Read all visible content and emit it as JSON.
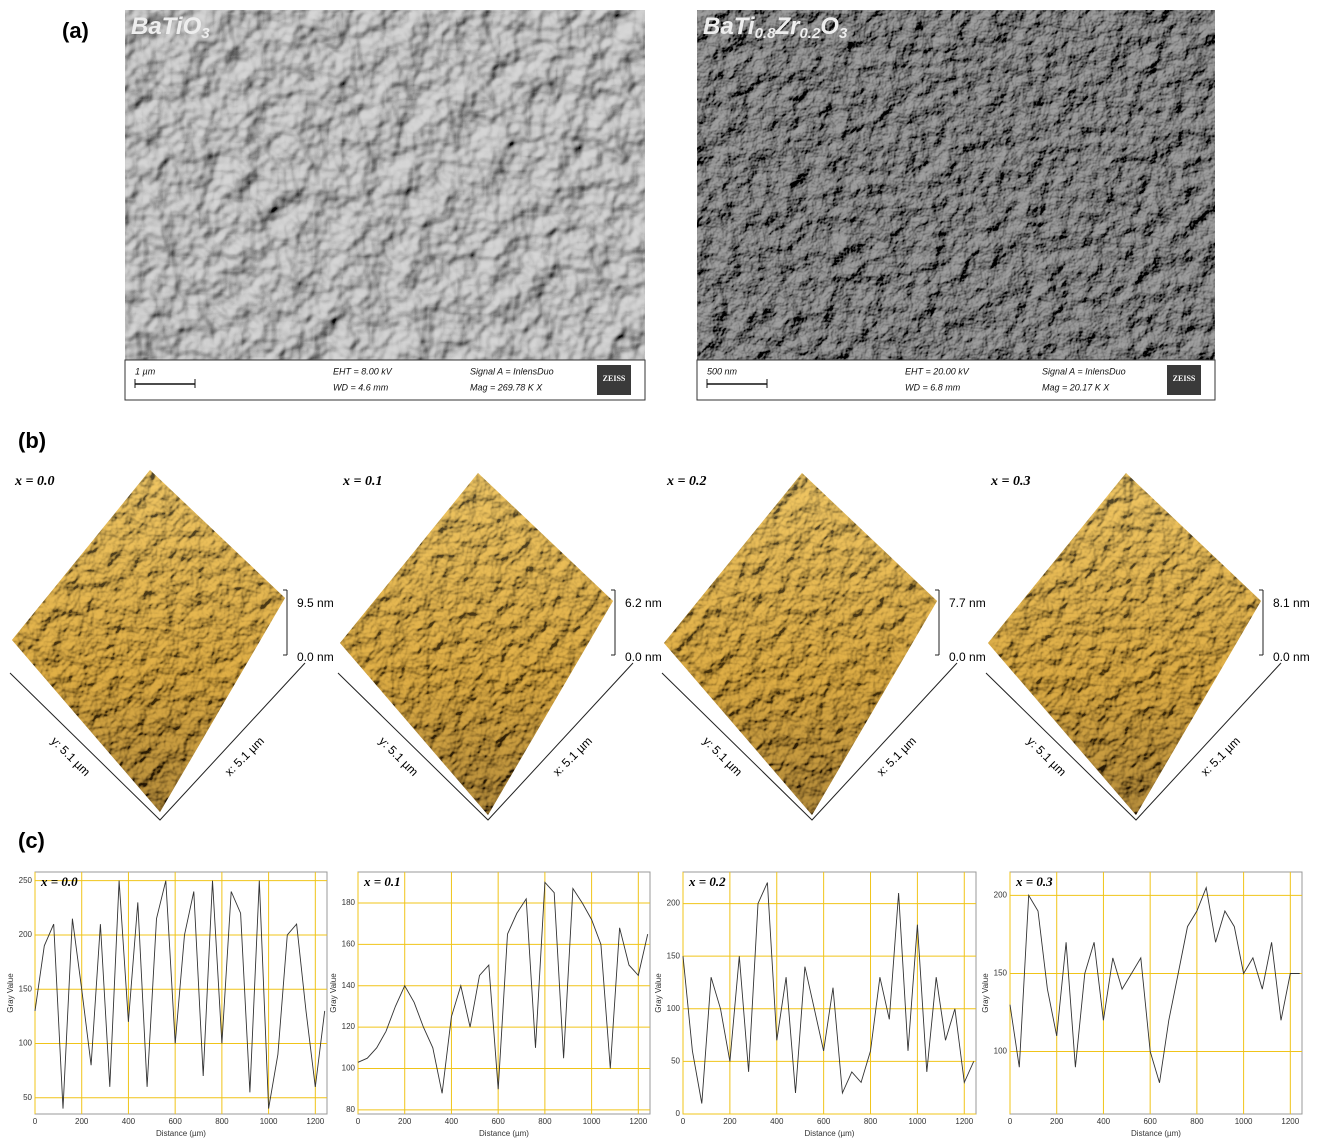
{
  "panel_a": {
    "label": "(a)",
    "images": [
      {
        "title": [
          {
            "text": "BaTiO"
          },
          {
            "text": "3",
            "sub": true
          }
        ],
        "scale_bar": "1 µm",
        "eht": "EHT = 8.00 kV",
        "wd": "WD = 4.6 mm",
        "signal": "Signal A = InlensDuo",
        "mag": "Mag = 269.78 K X",
        "logo": "ZEISS"
      },
      {
        "title": [
          {
            "text": "BaTi"
          },
          {
            "text": "0.8",
            "sub": true
          },
          {
            "text": "Zr"
          },
          {
            "text": "0.2",
            "sub": true
          },
          {
            "text": "O"
          },
          {
            "text": "3",
            "sub": true
          }
        ],
        "scale_bar": "500 nm",
        "eht": "EHT = 20.00 kV",
        "wd": "WD = 6.8 mm",
        "signal": "Signal A = InlensDuo",
        "mag": "Mag = 20.17 K X",
        "logo": "ZEISS"
      }
    ]
  },
  "panel_b": {
    "label": "(b)",
    "surfaces": [
      {
        "label": "x = 0.0",
        "z_max": "9.5 nm",
        "z_min": "0.0 nm",
        "y_axis": "y: 5.1 µm",
        "x_axis": "x: 5.1 µm"
      },
      {
        "label": "x = 0.1",
        "z_max": "6.2 nm",
        "z_min": "0.0 nm",
        "y_axis": "y: 5.1 µm",
        "x_axis": "x: 5.1 µm"
      },
      {
        "label": "x = 0.2",
        "z_max": "7.7 nm",
        "z_min": "0.0 nm",
        "y_axis": "y: 5.1 µm",
        "x_axis": "x: 5.1 µm"
      },
      {
        "label": "x = 0.3",
        "z_max": "8.1 nm",
        "z_min": "0.0 nm",
        "y_axis": "y: 5.1 µm",
        "x_axis": "x: 5.1 µm"
      }
    ]
  },
  "panel_c": {
    "label": "(c)"
  },
  "chart_data": [
    {
      "type": "line",
      "annotation": "x = 0.0",
      "xlabel": "Distance (µm)",
      "ylabel": "Gray Value",
      "color": "#333333",
      "grid": true,
      "x": [
        0,
        40,
        80,
        120,
        160,
        200,
        240,
        280,
        320,
        360,
        400,
        440,
        480,
        520,
        560,
        600,
        640,
        680,
        720,
        760,
        800,
        840,
        880,
        920,
        960,
        1000,
        1040,
        1080,
        1120,
        1160,
        1200,
        1240
      ],
      "values": [
        130,
        190,
        210,
        40,
        215,
        150,
        80,
        210,
        60,
        250,
        120,
        230,
        60,
        215,
        250,
        100,
        200,
        240,
        70,
        250,
        100,
        240,
        220,
        55,
        250,
        40,
        90,
        200,
        210,
        130,
        60,
        130
      ],
      "xlim": [
        0,
        1250
      ],
      "xticks": [
        0,
        200,
        400,
        600,
        800,
        1000,
        1200
      ],
      "ylim": [
        35,
        258
      ],
      "yticks": [
        50,
        100,
        150,
        200,
        250
      ]
    },
    {
      "type": "line",
      "annotation": "x = 0.1",
      "xlabel": "Distance (µm)",
      "ylabel": "Gray Value",
      "color": "#333333",
      "grid": true,
      "x": [
        0,
        40,
        80,
        120,
        160,
        200,
        240,
        280,
        320,
        360,
        400,
        440,
        480,
        520,
        560,
        600,
        640,
        680,
        720,
        760,
        800,
        840,
        880,
        920,
        960,
        1000,
        1040,
        1080,
        1120,
        1160,
        1200,
        1240
      ],
      "values": [
        103,
        105,
        110,
        118,
        130,
        140,
        132,
        120,
        110,
        88,
        125,
        140,
        120,
        145,
        150,
        90,
        165,
        175,
        182,
        110,
        190,
        185,
        105,
        187,
        180,
        172,
        160,
        100,
        168,
        150,
        145,
        165
      ],
      "xlim": [
        0,
        1250
      ],
      "xticks": [
        0,
        200,
        400,
        600,
        800,
        1000,
        1200
      ],
      "ylim": [
        78,
        195
      ],
      "yticks": [
        80,
        100,
        120,
        140,
        160,
        180
      ]
    },
    {
      "type": "line",
      "annotation": "x = 0.2",
      "xlabel": "Distance (µm)",
      "ylabel": "Gray Value",
      "color": "#333333",
      "grid": true,
      "x": [
        0,
        40,
        80,
        120,
        160,
        200,
        240,
        280,
        320,
        360,
        400,
        440,
        480,
        520,
        560,
        600,
        640,
        680,
        720,
        760,
        800,
        840,
        880,
        920,
        960,
        1000,
        1040,
        1080,
        1120,
        1160,
        1200,
        1240
      ],
      "values": [
        150,
        60,
        10,
        130,
        100,
        50,
        150,
        40,
        200,
        220,
        70,
        130,
        20,
        140,
        100,
        60,
        120,
        20,
        40,
        30,
        60,
        130,
        90,
        210,
        60,
        180,
        40,
        130,
        70,
        100,
        30,
        50
      ],
      "xlim": [
        0,
        1250
      ],
      "xticks": [
        0,
        200,
        400,
        600,
        800,
        1000,
        1200
      ],
      "ylim": [
        0,
        230
      ],
      "yticks": [
        0,
        50,
        100,
        150,
        200
      ]
    },
    {
      "type": "line",
      "annotation": "x = 0.3",
      "xlabel": "Distance (µm)",
      "ylabel": "Gray Value",
      "color": "#333333",
      "grid": true,
      "x": [
        0,
        40,
        80,
        120,
        160,
        200,
        240,
        280,
        320,
        360,
        400,
        440,
        480,
        520,
        560,
        600,
        640,
        680,
        720,
        760,
        800,
        840,
        880,
        920,
        960,
        1000,
        1040,
        1080,
        1120,
        1160,
        1200,
        1240
      ],
      "values": [
        130,
        90,
        200,
        190,
        140,
        110,
        170,
        90,
        150,
        170,
        120,
        160,
        140,
        150,
        160,
        100,
        80,
        120,
        150,
        180,
        190,
        205,
        170,
        190,
        180,
        150,
        160,
        140,
        170,
        120,
        150,
        150
      ],
      "xlim": [
        0,
        1250
      ],
      "xticks": [
        0,
        200,
        400,
        600,
        800,
        1000,
        1200
      ],
      "ylim": [
        60,
        215
      ],
      "yticks": [
        100,
        150,
        200
      ]
    }
  ]
}
